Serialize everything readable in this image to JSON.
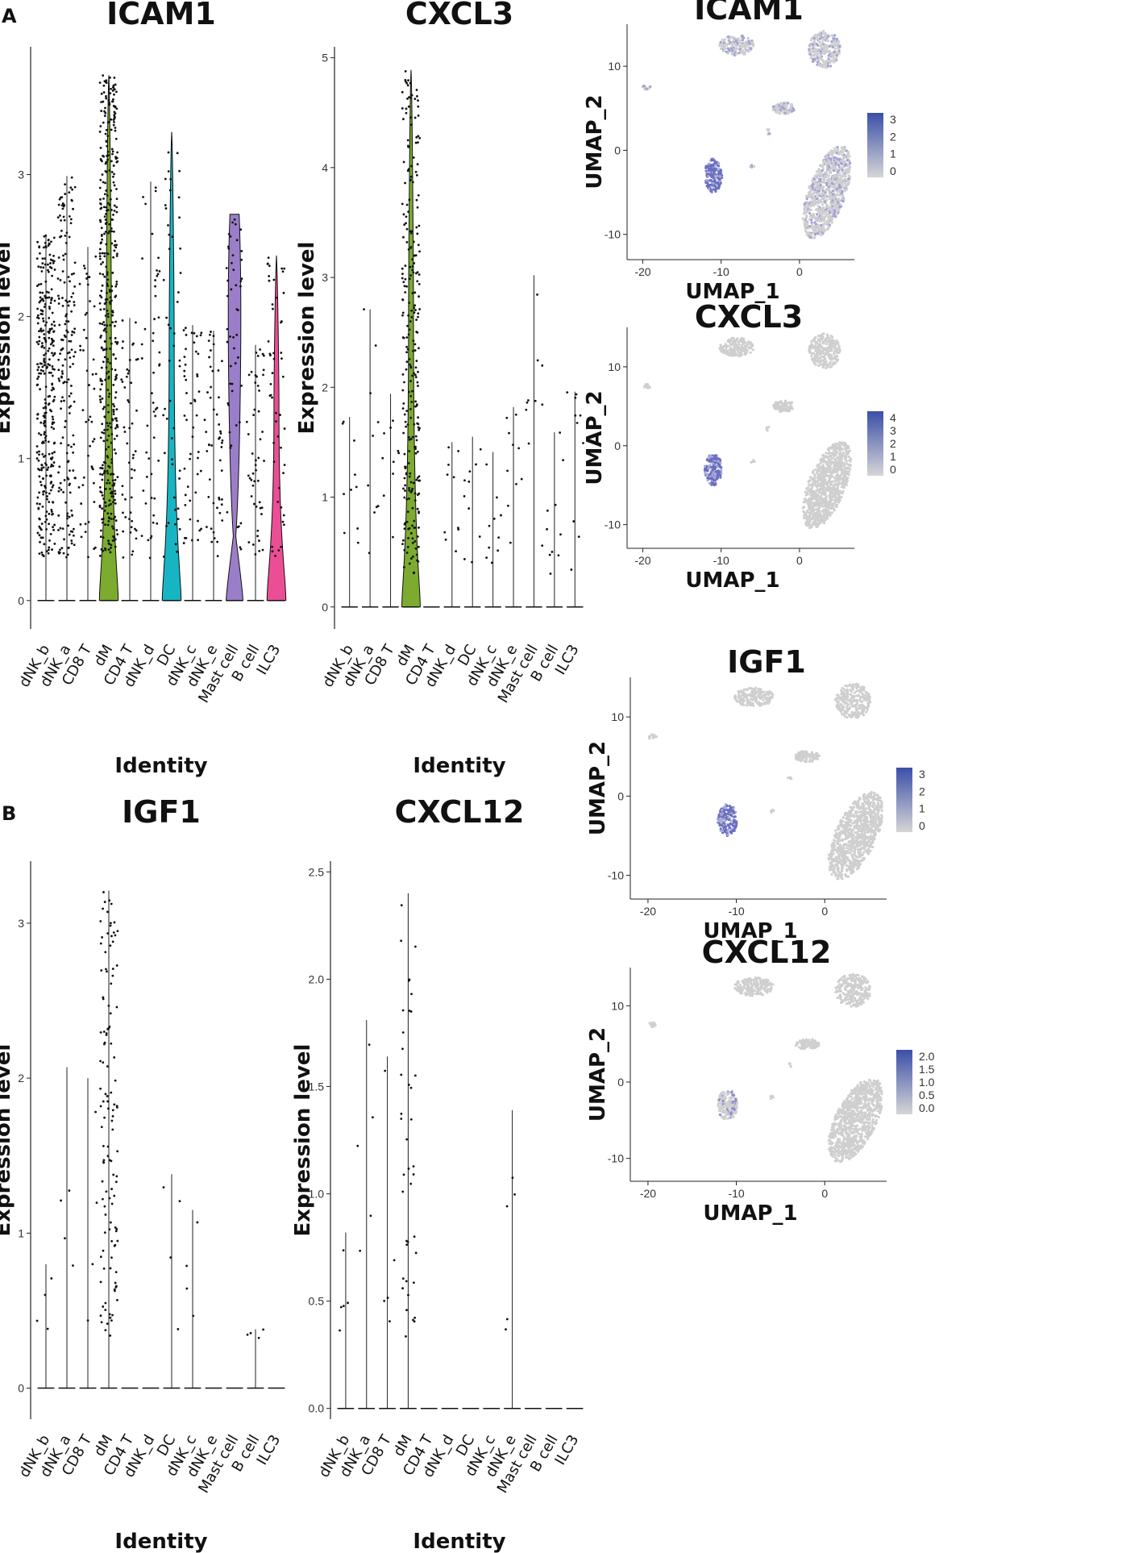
{
  "panels": [
    {
      "letter": "A"
    },
    {
      "letter": "B"
    }
  ],
  "colors": {
    "dM": "#7cab2f",
    "DC": "#17b5c4",
    "Mast cell": "#9b7ec9",
    "ILC3": "#ec4e95",
    "umap_low": "#d4d4d4",
    "umap_high": "#3b4fa8"
  },
  "chart_data": [
    {
      "type": "violin",
      "panel": "A",
      "title": "ICAM1",
      "xlabel": "Identity",
      "ylabel": "Expression level",
      "ylim": [
        -0.2,
        3.9
      ],
      "yticks": [
        "0",
        "1",
        "2",
        "3"
      ],
      "categories": [
        "dNK_b",
        "dNK_a",
        "CD8 T",
        "dM",
        "CD4 T",
        "dNK_d",
        "DC",
        "dNK_c",
        "dNK_e",
        "Mast cell",
        "B cell",
        "ILC3"
      ],
      "max_values": [
        2.58,
        2.99,
        2.49,
        3.7,
        1.99,
        2.95,
        3.3,
        1.94,
        1.9,
        2.72,
        1.8,
        2.43
      ],
      "filled": [
        "dM",
        "DC",
        "Mast cell",
        "ILC3"
      ]
    },
    {
      "type": "violin",
      "panel": "A",
      "title": "CXCL3",
      "xlabel": "Identity",
      "ylabel": "Expression level",
      "ylim": [
        -0.2,
        5.1
      ],
      "yticks": [
        "0",
        "1",
        "2",
        "3",
        "4",
        "5"
      ],
      "categories": [
        "dNK_b",
        "dNK_a",
        "CD8 T",
        "dM",
        "CD4 T",
        "dNK_d",
        "DC",
        "dNK_c",
        "dNK_e",
        "Mast cell",
        "B cell",
        "ILC3"
      ],
      "max_values": [
        1.73,
        2.71,
        1.94,
        4.89,
        0.0,
        1.5,
        1.55,
        1.41,
        1.82,
        3.02,
        1.59,
        1.96
      ],
      "filled": [
        "dM"
      ]
    },
    {
      "type": "violin",
      "panel": "B",
      "title": "IGF1",
      "xlabel": "Identity",
      "ylabel": "Expression level",
      "ylim": [
        -0.2,
        3.4
      ],
      "yticks": [
        "0",
        "1",
        "2",
        "3"
      ],
      "categories": [
        "dNK_b",
        "dNK_a",
        "CD8 T",
        "dM",
        "CD4 T",
        "dNK_d",
        "DC",
        "dNK_c",
        "dNK_e",
        "Mast cell",
        "B cell",
        "ILC3"
      ],
      "max_values": [
        0.8,
        2.07,
        2.0,
        3.21,
        0.0,
        0.0,
        1.38,
        1.15,
        0.0,
        0.0,
        0.38,
        0.0
      ],
      "filled": []
    },
    {
      "type": "violin",
      "panel": "B",
      "title": "CXCL12",
      "xlabel": "Identity",
      "ylabel": "Expression level",
      "ylim": [
        -0.05,
        2.55
      ],
      "yticks": [
        "0.0",
        "0.5",
        "1.0",
        "1.5",
        "2.0",
        "2.5"
      ],
      "categories": [
        "dNK_b",
        "dNK_a",
        "CD8 T",
        "dM",
        "CD4 T",
        "dNK_d",
        "DC",
        "dNK_c",
        "dNK_e",
        "Mast cell",
        "B cell",
        "ILC3"
      ],
      "max_values": [
        0.82,
        1.81,
        1.64,
        2.4,
        0.0,
        0.0,
        0.0,
        0.0,
        1.39,
        0.0,
        0.0,
        0.0
      ],
      "filled": []
    },
    {
      "type": "scatter",
      "panel": "A",
      "title": "ICAM1",
      "xlabel": "UMAP_1",
      "ylabel": "UMAP_2",
      "xlim": [
        -22,
        7
      ],
      "ylim": [
        -13,
        15
      ],
      "xticks": [
        "-20",
        "-10",
        "0"
      ],
      "yticks": [
        "-10",
        "0",
        "10"
      ],
      "legend": [
        "3",
        "2",
        "1",
        "0"
      ],
      "highlight": "strong"
    },
    {
      "type": "scatter",
      "panel": "A",
      "title": "CXCL3",
      "xlabel": "UMAP_1",
      "ylabel": "UMAP_2",
      "xlim": [
        -22,
        7
      ],
      "ylim": [
        -13,
        15
      ],
      "xticks": [
        "-20",
        "-10",
        "0"
      ],
      "yticks": [
        "-10",
        "0",
        "10"
      ],
      "legend": [
        "4",
        "3",
        "2",
        "1",
        "0"
      ],
      "highlight": "cluster"
    },
    {
      "type": "scatter",
      "panel": "B",
      "title": "IGF1",
      "xlabel": "UMAP_1",
      "ylabel": "UMAP_2",
      "xlim": [
        -22,
        7
      ],
      "ylim": [
        -13,
        15
      ],
      "xticks": [
        "-20",
        "-10",
        "0"
      ],
      "yticks": [
        "-10",
        "0",
        "10"
      ],
      "legend": [
        "3",
        "2",
        "1",
        "0"
      ],
      "highlight": "cluster"
    },
    {
      "type": "scatter",
      "panel": "B",
      "title": "CXCL12",
      "xlabel": "UMAP_1",
      "ylabel": "UMAP_2",
      "xlim": [
        -22,
        7
      ],
      "ylim": [
        -13,
        15
      ],
      "xticks": [
        "-20",
        "-10",
        "0"
      ],
      "yticks": [
        "-10",
        "0",
        "10"
      ],
      "legend": [
        "2.0",
        "1.5",
        "1.0",
        "0.5",
        "0.0"
      ],
      "highlight": "weak"
    }
  ]
}
